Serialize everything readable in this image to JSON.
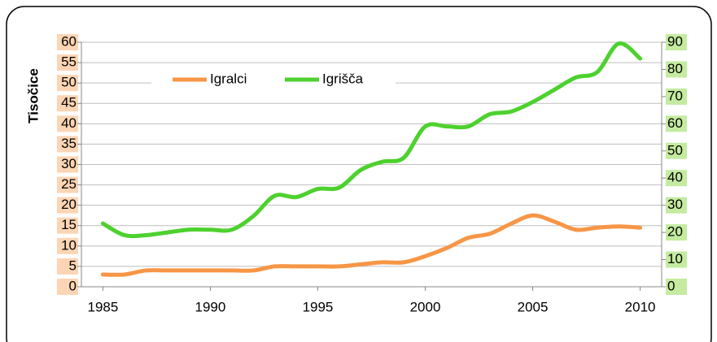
{
  "chart_data": {
    "type": "line",
    "y_label": "Tisočice",
    "x": [
      1985,
      1986,
      1987,
      1988,
      1989,
      1990,
      1991,
      1992,
      1993,
      1994,
      1995,
      1996,
      1997,
      1998,
      1999,
      2000,
      2001,
      2002,
      2003,
      2004,
      2005,
      2006,
      2007,
      2008,
      2009,
      2010
    ],
    "series": [
      {
        "name": "Igralci",
        "color": "#f79646",
        "axis": "y",
        "values": [
          3,
          3,
          4,
          4,
          4,
          4,
          4,
          4,
          5,
          5,
          5,
          5,
          5.5,
          6,
          6,
          7.5,
          9.5,
          12,
          13,
          15.5,
          17.5,
          16,
          14,
          14.5,
          14.8,
          14.5
        ]
      },
      {
        "name": "Igrišča",
        "color": "#4dd12e",
        "axis": "y2",
        "values": [
          23.3,
          19,
          19,
          20,
          21,
          21,
          21,
          26,
          33.5,
          33,
          36,
          36.5,
          43,
          46,
          47.5,
          59,
          59,
          59,
          63.5,
          64.5,
          68,
          72.5,
          77,
          79,
          89.5,
          84
        ]
      }
    ],
    "xlim": [
      1984,
      2011
    ],
    "xticks": [
      1985,
      1990,
      1995,
      2000,
      2005,
      2010
    ],
    "ylim": [
      0,
      60
    ],
    "yticks": [
      0,
      5,
      10,
      15,
      20,
      25,
      30,
      35,
      40,
      45,
      50,
      55,
      60
    ],
    "y2lim": [
      0,
      90
    ],
    "y2ticks": [
      0,
      10,
      20,
      30,
      40,
      50,
      60,
      70,
      80,
      90
    ],
    "grid": true,
    "legend": "top"
  }
}
